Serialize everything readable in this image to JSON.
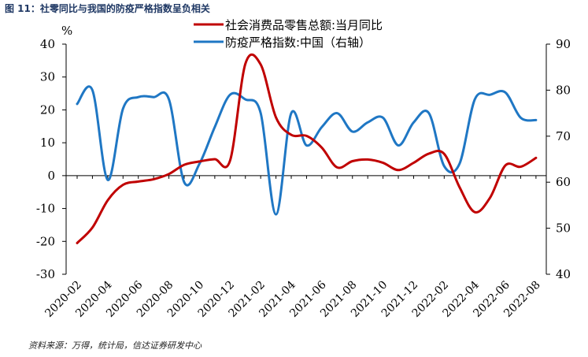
{
  "figure_title": "图 11：社零同比与我国的防疫严格指数呈负相关",
  "source": "资料来源：万得，统计局，信达证券研发中心",
  "chart_data": {
    "type": "line",
    "x": [
      "2020-02",
      "2020-03",
      "2020-04",
      "2020-05",
      "2020-06",
      "2020-07",
      "2020-08",
      "2020-09",
      "2020-10",
      "2020-11",
      "2020-12",
      "2021-01",
      "2021-02",
      "2021-03",
      "2021-04",
      "2021-05",
      "2021-06",
      "2021-07",
      "2021-08",
      "2021-09",
      "2021-10",
      "2021-11",
      "2021-12",
      "2022-01",
      "2022-02",
      "2022-03",
      "2022-04",
      "2022-05",
      "2022-06",
      "2022-07",
      "2022-08"
    ],
    "xticks": [
      "2020-02",
      "2020-04",
      "2020-06",
      "2020-08",
      "2020-10",
      "2020-12",
      "2021-02",
      "2021-04",
      "2021-06",
      "2021-08",
      "2021-10",
      "2021-12",
      "2022-02",
      "2022-04",
      "2022-06",
      "2022-08"
    ],
    "left_axis": {
      "label": "%",
      "ylim": [
        -30,
        40
      ],
      "ticks": [
        -30,
        -20,
        -10,
        0,
        10,
        20,
        30,
        40
      ]
    },
    "right_axis": {
      "label": "",
      "ylim": [
        40,
        90
      ],
      "ticks": [
        40,
        50,
        60,
        70,
        80,
        90
      ]
    },
    "legend_position": "top-center",
    "series": [
      {
        "name": "社会消费品零售总额:当月同比",
        "axis": "left",
        "color": "#c00000",
        "values": [
          -20.5,
          -15.8,
          -7.5,
          -2.8,
          -1.8,
          -1.1,
          0.5,
          3.3,
          4.3,
          5.0,
          4.6,
          34.0,
          33.8,
          17.7,
          12.4,
          12.1,
          8.5,
          2.5,
          4.4,
          4.9,
          3.9,
          1.7,
          3.9,
          6.7,
          6.6,
          -3.5,
          -11.1,
          -6.7,
          3.1,
          2.7,
          5.4
        ]
      },
      {
        "name": "防疫严格指数:中国（右轴）",
        "axis": "right",
        "color": "#1f77c4",
        "values": [
          77,
          80,
          60.5,
          76,
          78.5,
          78.5,
          78,
          60,
          64,
          72,
          79,
          78,
          75,
          53,
          75,
          68,
          72,
          75,
          71,
          73,
          74,
          68,
          73,
          75,
          63.5,
          64,
          78,
          79,
          79.5,
          74,
          73.5
        ]
      }
    ]
  }
}
